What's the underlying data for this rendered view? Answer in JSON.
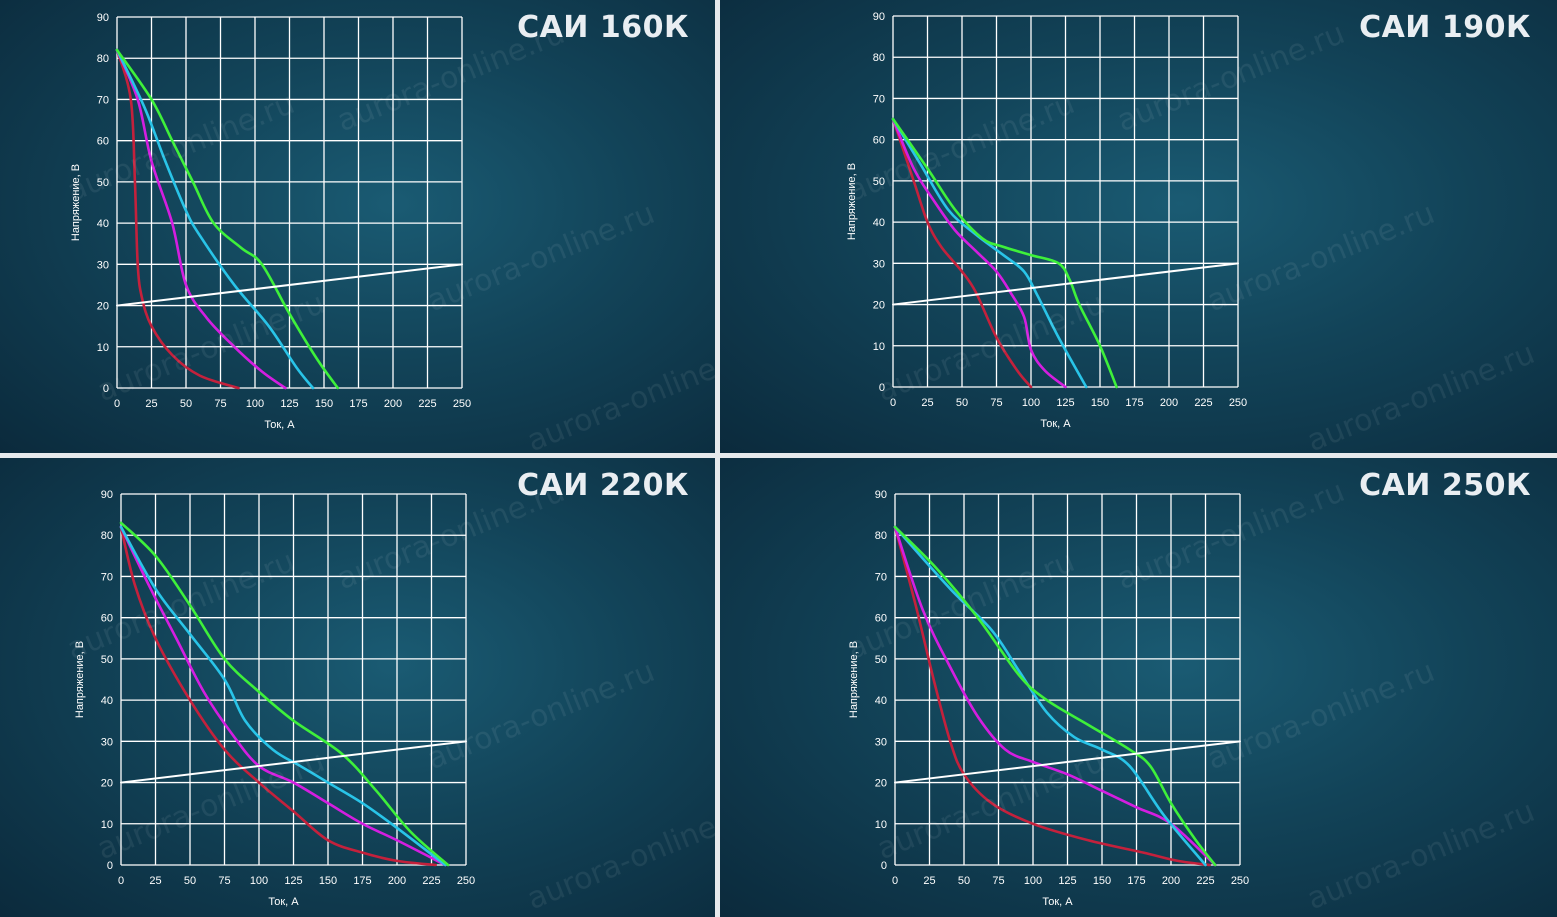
{
  "watermark": "aurora-online.ru",
  "colors": {
    "grid": "#ffffff",
    "red": "#c4213c",
    "magenta": "#d41ee0",
    "cyan": "#29c4e8",
    "green": "#3ef03a",
    "white": "#ffffff"
  },
  "chart_data": [
    {
      "type": "line",
      "title": "САИ 160К",
      "xlabel": "Ток, А",
      "ylabel": "Напряжение, В",
      "xlim": [
        0,
        250
      ],
      "ylim": [
        0,
        90
      ],
      "xticks": [
        0,
        25,
        50,
        75,
        100,
        125,
        150,
        175,
        200,
        225,
        250
      ],
      "yticks": [
        0,
        10,
        20,
        30,
        40,
        50,
        60,
        70,
        80,
        90
      ],
      "series": [
        {
          "color": "red",
          "points": [
            [
              0,
              82
            ],
            [
              10,
              70
            ],
            [
              13,
              50
            ],
            [
              15,
              30
            ],
            [
              18,
              22
            ],
            [
              25,
              15
            ],
            [
              40,
              8
            ],
            [
              60,
              3
            ],
            [
              88,
              0
            ]
          ]
        },
        {
          "color": "magenta",
          "points": [
            [
              0,
              82
            ],
            [
              15,
              70
            ],
            [
              25,
              55
            ],
            [
              40,
              40
            ],
            [
              50,
              25
            ],
            [
              65,
              17
            ],
            [
              85,
              10
            ],
            [
              105,
              4
            ],
            [
              122,
              0
            ]
          ]
        },
        {
          "color": "cyan",
          "points": [
            [
              0,
              82
            ],
            [
              20,
              68
            ],
            [
              35,
              55
            ],
            [
              50,
              43
            ],
            [
              60,
              37
            ],
            [
              85,
              25
            ],
            [
              110,
              15
            ],
            [
              130,
              5
            ],
            [
              142,
              0
            ]
          ]
        },
        {
          "color": "green",
          "points": [
            [
              0,
              82
            ],
            [
              25,
              70
            ],
            [
              40,
              60
            ],
            [
              55,
              50
            ],
            [
              70,
              40
            ],
            [
              90,
              34
            ],
            [
              105,
              30
            ],
            [
              125,
              18
            ],
            [
              145,
              7
            ],
            [
              160,
              0
            ]
          ]
        },
        {
          "color": "white",
          "points": [
            [
              0,
              20
            ],
            [
              250,
              30
            ]
          ]
        }
      ]
    },
    {
      "type": "line",
      "title": "САИ 190К",
      "xlabel": "Ток, А",
      "ylabel": "Напряжение, В",
      "xlim": [
        0,
        250
      ],
      "ylim": [
        0,
        90
      ],
      "xticks": [
        0,
        25,
        50,
        75,
        100,
        125,
        150,
        175,
        200,
        225,
        250
      ],
      "yticks": [
        0,
        10,
        20,
        30,
        40,
        50,
        60,
        70,
        80,
        90
      ],
      "series": [
        {
          "color": "red",
          "points": [
            [
              0,
              65
            ],
            [
              15,
              50
            ],
            [
              25,
              40
            ],
            [
              35,
              34
            ],
            [
              50,
              28
            ],
            [
              60,
              23
            ],
            [
              75,
              12
            ],
            [
              90,
              4
            ],
            [
              100,
              0
            ]
          ]
        },
        {
          "color": "magenta",
          "points": [
            [
              0,
              65
            ],
            [
              15,
              53
            ],
            [
              30,
              45
            ],
            [
              45,
              38
            ],
            [
              60,
              33
            ],
            [
              75,
              28
            ],
            [
              85,
              23
            ],
            [
              95,
              17
            ],
            [
              100,
              9
            ],
            [
              110,
              4
            ],
            [
              125,
              0
            ]
          ]
        },
        {
          "color": "cyan",
          "points": [
            [
              0,
              65
            ],
            [
              20,
              54
            ],
            [
              40,
              43
            ],
            [
              60,
              37
            ],
            [
              80,
              32
            ],
            [
              95,
              28
            ],
            [
              105,
              22
            ],
            [
              120,
              12
            ],
            [
              140,
              0
            ]
          ]
        },
        {
          "color": "green",
          "points": [
            [
              0,
              65
            ],
            [
              25,
              53
            ],
            [
              45,
              43
            ],
            [
              65,
              36
            ],
            [
              80,
              34
            ],
            [
              100,
              32
            ],
            [
              120,
              30
            ],
            [
              128,
              26
            ],
            [
              135,
              20
            ],
            [
              150,
              10
            ],
            [
              162,
              0
            ]
          ]
        },
        {
          "color": "white",
          "points": [
            [
              0,
              20
            ],
            [
              250,
              30
            ]
          ]
        }
      ]
    },
    {
      "type": "line",
      "title": "САИ 220К",
      "xlabel": "Ток, А",
      "ylabel": "Напряжение, В",
      "xlim": [
        0,
        250
      ],
      "ylim": [
        0,
        90
      ],
      "xticks": [
        0,
        25,
        50,
        75,
        100,
        125,
        150,
        175,
        200,
        225,
        250
      ],
      "yticks": [
        0,
        10,
        20,
        30,
        40,
        50,
        60,
        70,
        80,
        90
      ],
      "series": [
        {
          "color": "red",
          "points": [
            [
              0,
              82
            ],
            [
              10,
              68
            ],
            [
              25,
              55
            ],
            [
              50,
              40
            ],
            [
              75,
              28
            ],
            [
              100,
              20
            ],
            [
              125,
              13
            ],
            [
              150,
              6
            ],
            [
              175,
              3
            ],
            [
              200,
              1
            ],
            [
              228,
              0
            ]
          ]
        },
        {
          "color": "magenta",
          "points": [
            [
              0,
              82
            ],
            [
              20,
              68
            ],
            [
              40,
              55
            ],
            [
              60,
              42
            ],
            [
              80,
              32
            ],
            [
              100,
              24
            ],
            [
              125,
              20
            ],
            [
              150,
              15
            ],
            [
              175,
              10
            ],
            [
              200,
              6
            ],
            [
              235,
              0
            ]
          ]
        },
        {
          "color": "cyan",
          "points": [
            [
              0,
              82
            ],
            [
              25,
              67
            ],
            [
              50,
              56
            ],
            [
              75,
              45
            ],
            [
              90,
              35
            ],
            [
              110,
              28
            ],
            [
              130,
              24
            ],
            [
              150,
              20
            ],
            [
              175,
              15
            ],
            [
              200,
              9
            ],
            [
              235,
              0
            ]
          ]
        },
        {
          "color": "green",
          "points": [
            [
              0,
              83
            ],
            [
              25,
              75
            ],
            [
              50,
              63
            ],
            [
              75,
              50
            ],
            [
              100,
              42
            ],
            [
              125,
              35
            ],
            [
              160,
              27
            ],
            [
              185,
              18
            ],
            [
              210,
              8
            ],
            [
              237,
              0
            ]
          ]
        },
        {
          "color": "white",
          "points": [
            [
              0,
              20
            ],
            [
              250,
              30
            ]
          ]
        }
      ]
    },
    {
      "type": "line",
      "title": "САИ 250К",
      "xlabel": "Ток, А",
      "ylabel": "Напряжение, В",
      "xlim": [
        0,
        250
      ],
      "ylim": [
        0,
        90
      ],
      "xticks": [
        0,
        25,
        50,
        75,
        100,
        125,
        150,
        175,
        200,
        225,
        250
      ],
      "yticks": [
        0,
        10,
        20,
        30,
        40,
        50,
        60,
        70,
        80,
        90
      ],
      "series": [
        {
          "color": "red",
          "points": [
            [
              0,
              82
            ],
            [
              15,
              63
            ],
            [
              28,
              45
            ],
            [
              40,
              30
            ],
            [
              50,
              22
            ],
            [
              70,
              15
            ],
            [
              100,
              10
            ],
            [
              140,
              6
            ],
            [
              180,
              3
            ],
            [
              205,
              1
            ],
            [
              228,
              0
            ]
          ]
        },
        {
          "color": "magenta",
          "points": [
            [
              0,
              82
            ],
            [
              20,
              62
            ],
            [
              40,
              48
            ],
            [
              60,
              36
            ],
            [
              80,
              28
            ],
            [
              100,
              25
            ],
            [
              125,
              22
            ],
            [
              150,
              18
            ],
            [
              175,
              14
            ],
            [
              200,
              10
            ],
            [
              232,
              0
            ]
          ]
        },
        {
          "color": "cyan",
          "points": [
            [
              0,
              82
            ],
            [
              40,
              67
            ],
            [
              70,
              57
            ],
            [
              90,
              47
            ],
            [
              110,
              37
            ],
            [
              130,
              31
            ],
            [
              150,
              28
            ],
            [
              170,
              24
            ],
            [
              195,
              12
            ],
            [
              225,
              0
            ]
          ]
        },
        {
          "color": "green",
          "points": [
            [
              0,
              82
            ],
            [
              30,
              72
            ],
            [
              60,
              60
            ],
            [
              90,
              46
            ],
            [
              110,
              40
            ],
            [
              140,
              34
            ],
            [
              170,
              28
            ],
            [
              185,
              24
            ],
            [
              200,
              15
            ],
            [
              218,
              6
            ],
            [
              232,
              0
            ]
          ]
        },
        {
          "color": "white",
          "points": [
            [
              0,
              20
            ],
            [
              250,
              30
            ]
          ]
        }
      ]
    }
  ]
}
